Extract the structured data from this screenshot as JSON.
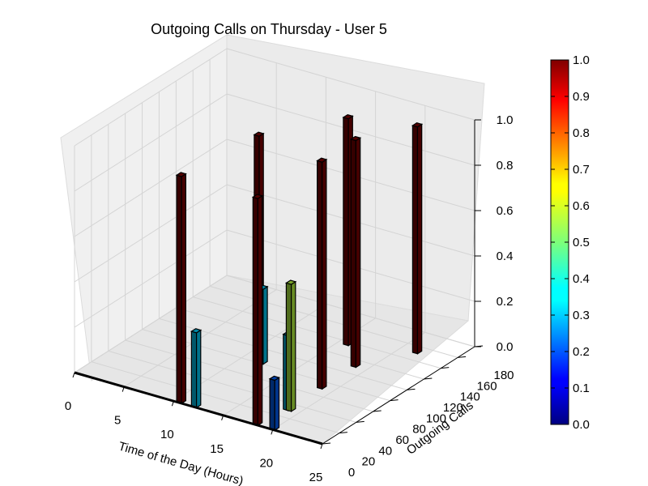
{
  "chart_data": {
    "type": "bar3d",
    "title": "Outgoing Calls on Thursday - User 5",
    "xlabel": "Time of the Day (Hours)",
    "ylabel": "Outgoing Calls",
    "zlabel": "",
    "xlim": [
      0,
      25
    ],
    "ylim": [
      0,
      180
    ],
    "zlim": [
      0,
      1.0
    ],
    "xticks": [
      "0",
      "5",
      "10",
      "15",
      "20",
      "25"
    ],
    "yticks": [
      "0",
      "20",
      "40",
      "60",
      "80",
      "100",
      "120",
      "140",
      "160",
      "180"
    ],
    "zticks": [
      "0.0",
      "0.2",
      "0.4",
      "0.6",
      "0.8",
      "1.0"
    ],
    "colormap": "jet",
    "colorbar": {
      "ticks": [
        "0.0",
        "0.1",
        "0.2",
        "0.3",
        "0.4",
        "0.5",
        "0.6",
        "0.7",
        "0.8",
        "0.9",
        "1.0"
      ]
    },
    "bars": [
      {
        "x": 10.3,
        "y": 0,
        "z": 1.0,
        "colorValue": 1.0
      },
      {
        "x": 11.3,
        "y": 80,
        "z": 1.0,
        "colorValue": 1.0
      },
      {
        "x": 11.8,
        "y": 0,
        "z": 0.33,
        "colorValue": 0.33
      },
      {
        "x": 11.7,
        "y": 80,
        "z": 0.33,
        "colorValue": 0.33
      },
      {
        "x": 15.6,
        "y": 135,
        "z": 1.0,
        "colorValue": 1.0
      },
      {
        "x": 18.5,
        "y": 30,
        "z": 0.33,
        "colorValue": 0.33
      },
      {
        "x": 18.5,
        "y": 70,
        "z": 1.0,
        "colorValue": 1.0
      },
      {
        "x": 18.5,
        "y": 110,
        "z": 1.0,
        "colorValue": 1.0
      },
      {
        "x": 18.0,
        "y": 0,
        "z": 1.0,
        "colorValue": 1.0
      },
      {
        "x": 18.8,
        "y": 30,
        "z": 0.56,
        "colorValue": 0.56
      },
      {
        "x": 19.7,
        "y": 0,
        "z": 0.22,
        "colorValue": 0.22
      },
      {
        "x": 21.3,
        "y": 150,
        "z": 1.0,
        "colorValue": 1.0
      }
    ]
  }
}
